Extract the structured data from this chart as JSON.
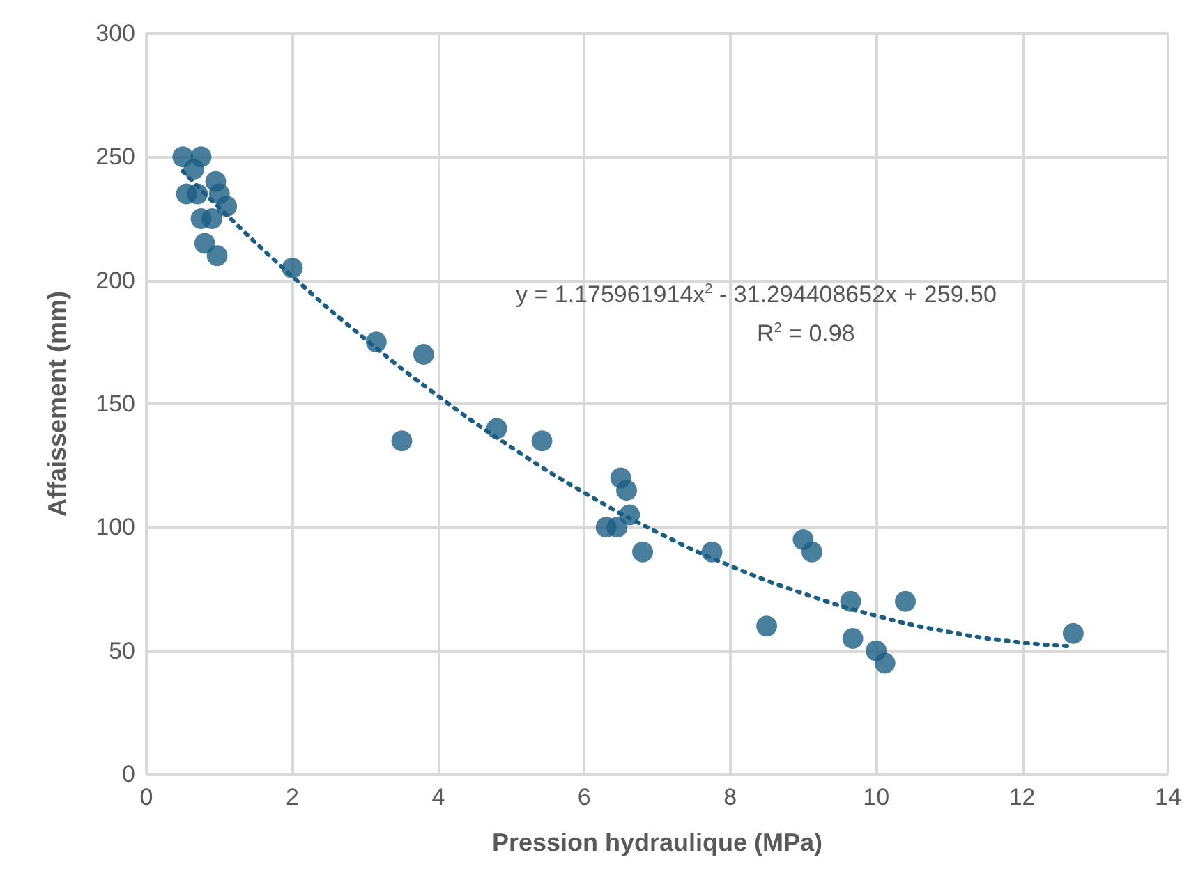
{
  "chart_data": {
    "type": "scatter",
    "xlabel": "Pression hydraulique (MPa)",
    "ylabel": "Affaissement (mm)",
    "xlim": [
      0,
      14
    ],
    "xticks": [
      0,
      2,
      4,
      6,
      8,
      10,
      12,
      14
    ],
    "ylim": [
      0,
      300
    ],
    "yticks": [
      0,
      50,
      100,
      150,
      200,
      250,
      300
    ],
    "grid": true,
    "marker": "circle",
    "annotations": [
      "y = 1.175961914x$^{2}$ - 31.294408652x + 259.50",
      "R$^{2}$ = 0.98"
    ],
    "series": [
      {
        "color": "#1b5e84",
        "x": [
          0.5,
          0.65,
          0.75,
          0.55,
          0.65,
          0.7,
          0.8,
          0.85,
          0.95,
          0.9,
          0.75,
          0.9,
          1.0,
          1.1,
          0.8,
          0.97,
          0.65,
          2.0,
          3.15,
          3.8,
          3.5,
          4.8,
          5.42,
          6.5,
          6.58,
          6.62,
          6.3,
          6.45,
          6.8,
          7.75,
          8.5,
          9.0,
          9.12,
          9.65,
          9.68,
          10.0,
          10.12,
          10.4,
          12.7
        ],
        "values": [
          250,
          null,
          250,
          235,
          null,
          235,
          null,
          null,
          240,
          null,
          225,
          225,
          235,
          230,
          215,
          210,
          245,
          205,
          175,
          170,
          135,
          140,
          135,
          120,
          115,
          105,
          100,
          100,
          90,
          90,
          60,
          95,
          90,
          70,
          55,
          50,
          45,
          70,
          57
        ]
      },
      {
        "type": "line",
        "line_style": "dotted",
        "marker": "none",
        "color": "#1b5e84",
        "x": [
          0.5,
          1,
          2,
          3,
          4,
          5,
          6,
          7,
          8,
          9,
          10,
          11,
          12,
          12.7
        ],
        "values": [
          244.2,
          229.4,
          201.6,
          176.2,
          153.1,
          132.4,
          114.0,
          98.0,
          84.4,
          73.2,
          64.2,
          57.6,
          53.3,
          51.8
        ]
      }
    ]
  }
}
